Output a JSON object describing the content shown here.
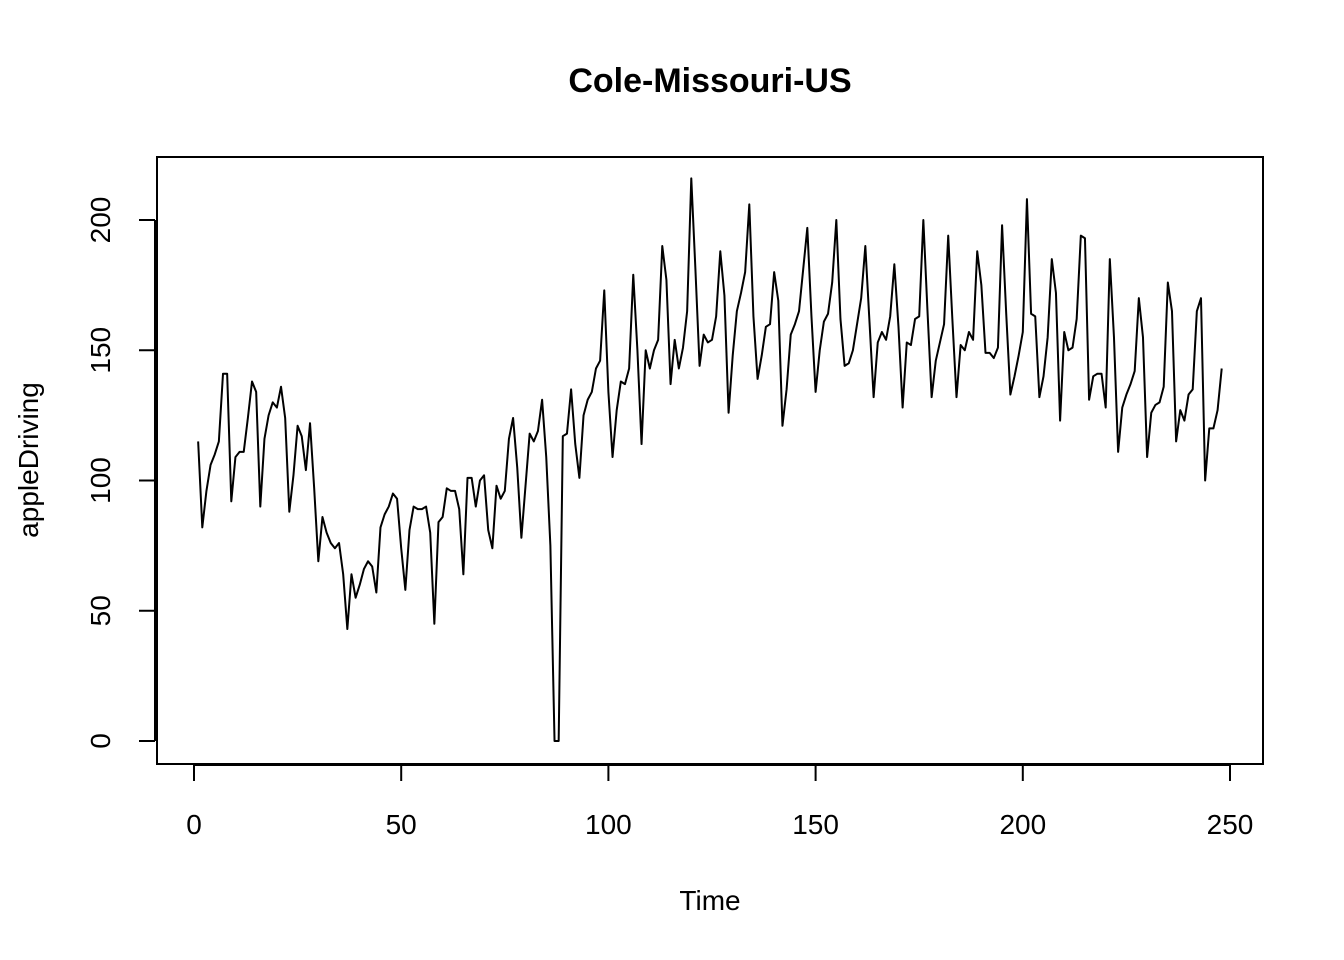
{
  "chart_data": {
    "type": "line",
    "title": "Cole-Missouri-US",
    "xlabel": "Time",
    "ylabel": "appleDriving",
    "xlim": [
      0,
      250
    ],
    "ylim": [
      0,
      210
    ],
    "x_ticks": [
      0,
      50,
      100,
      150,
      200,
      250
    ],
    "y_ticks": [
      0,
      50,
      100,
      150,
      200
    ],
    "x_tick_labels": [
      "0",
      "50",
      "100",
      "150",
      "200",
      "250"
    ],
    "y_tick_labels": [
      "0",
      "50",
      "100",
      "150",
      "200"
    ],
    "grid": false,
    "series": [
      {
        "values": [
          115,
          82,
          96,
          106,
          110,
          115,
          141,
          141,
          92,
          109,
          111,
          111,
          124,
          138,
          134,
          90,
          116,
          125,
          130,
          128,
          136,
          124,
          88,
          102,
          121,
          117,
          104,
          122,
          97,
          69,
          86,
          80,
          76,
          74,
          76,
          64,
          43,
          64,
          55,
          60,
          66,
          69,
          67,
          57,
          82,
          87,
          90,
          95,
          93,
          74,
          58,
          81,
          90,
          89,
          89,
          90,
          80,
          45,
          84,
          86,
          97,
          96,
          96,
          89,
          64,
          101,
          101,
          90,
          100,
          102,
          81,
          74,
          98,
          93,
          96,
          116,
          124,
          105,
          78,
          98,
          118,
          115,
          119,
          131,
          109,
          75,
          0,
          0,
          117,
          118,
          135,
          114,
          101,
          125,
          131,
          134,
          143,
          146,
          173,
          134,
          109,
          127,
          138,
          137,
          143,
          179,
          150,
          114,
          150,
          143,
          150,
          154,
          190,
          177,
          137,
          154,
          143,
          151,
          165,
          216,
          181,
          144,
          156,
          153,
          154,
          163,
          188,
          171,
          126,
          148,
          165,
          172,
          180,
          206,
          163,
          139,
          148,
          159,
          160,
          180,
          169,
          121,
          135,
          156,
          160,
          165,
          181,
          197,
          163,
          134,
          150,
          161,
          164,
          176,
          200,
          162,
          144,
          145,
          150,
          160,
          170,
          190,
          161,
          132,
          153,
          157,
          154,
          163,
          183,
          159,
          128,
          153,
          152,
          162,
          163,
          200,
          165,
          132,
          146,
          153,
          160,
          194,
          162,
          132,
          152,
          150,
          157,
          154,
          188,
          175,
          149,
          149,
          147,
          151,
          198,
          164,
          133,
          140,
          148,
          157,
          208,
          164,
          163,
          132,
          140,
          155,
          185,
          172,
          123,
          157,
          150,
          151,
          162,
          194,
          193,
          131,
          140,
          141,
          141,
          128,
          185,
          155,
          111,
          128,
          133,
          137,
          142,
          170,
          155,
          109,
          126,
          129,
          130,
          136,
          176,
          165,
          115,
          127,
          123,
          133,
          135,
          165,
          170,
          100,
          120,
          120,
          127,
          143
        ]
      }
    ]
  }
}
